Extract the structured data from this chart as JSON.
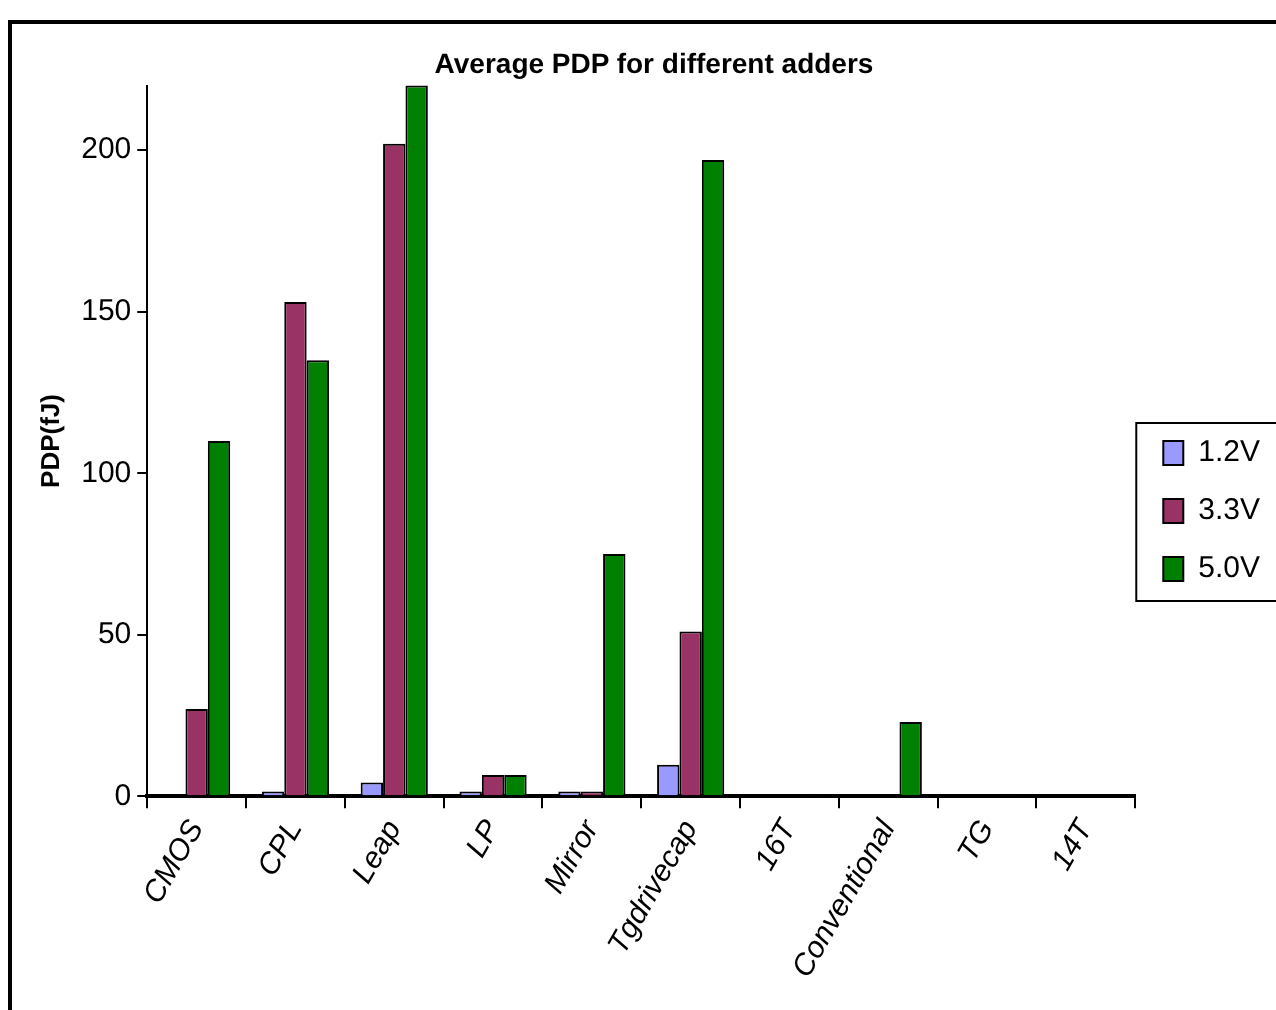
{
  "chart_data": {
    "type": "bar",
    "title": "Average PDP for different adders",
    "ylabel": "PDP(fJ)",
    "categories": [
      "CMOS",
      "CPL",
      "Leap",
      "LP",
      "Mirror",
      "Tgdrivecap",
      "16T",
      "Conventional",
      "TG",
      "14T"
    ],
    "series": [
      {
        "name": "1.2V",
        "color": "#9999ff",
        "values": [
          null,
          1.5,
          4.3,
          1.5,
          1.5,
          9.8,
          null,
          null,
          null,
          null
        ]
      },
      {
        "name": "3.3V",
        "color": "#993366",
        "values": [
          27,
          153,
          202,
          6.6,
          1.5,
          51,
          null,
          null,
          null,
          null
        ]
      },
      {
        "name": "5.0V",
        "color": "#008000",
        "values": [
          110,
          135,
          220,
          6.6,
          75,
          197,
          0.5,
          23,
          0.5,
          null
        ]
      }
    ],
    "ylim": [
      0,
      220
    ],
    "yticks": [
      0,
      50,
      100,
      150,
      200
    ],
    "grid": false,
    "legend": "right"
  }
}
